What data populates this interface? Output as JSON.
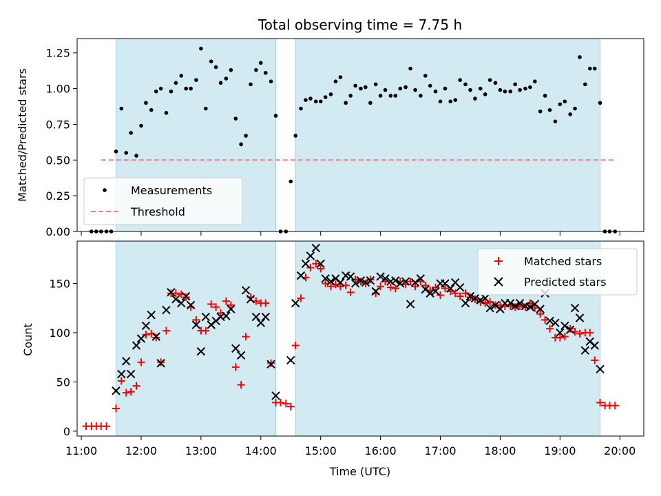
{
  "figure": {
    "title": "Total observing time = 7.75 h",
    "xlabel": "Time (UTC)"
  },
  "chart_data": [
    {
      "type": "scatter",
      "panel": "top",
      "ylabel": "Matched/Predicted stars",
      "xlim": [
        10.93,
        20.4
      ],
      "ylim": [
        0,
        1.35
      ],
      "yticks": [
        0.0,
        0.25,
        0.5,
        0.75,
        1.0,
        1.25
      ],
      "ytick_labels": [
        "0.00",
        "0.25",
        "0.50",
        "0.75",
        "1.00",
        "1.25"
      ],
      "legend": {
        "placement": "lower-left",
        "entries": [
          "Measurements",
          "Threshold"
        ]
      },
      "observing_windows": [
        [
          11.58,
          14.25
        ],
        [
          14.58,
          19.67
        ]
      ],
      "threshold": {
        "name": "Threshold",
        "y": 0.5,
        "x_range": [
          11.33,
          19.92
        ],
        "color": "#f08080"
      },
      "series": [
        {
          "name": "Measurements",
          "color": "#000000",
          "x": [
            11.17,
            11.25,
            11.33,
            11.42,
            11.5,
            11.58,
            11.67,
            11.75,
            11.83,
            11.92,
            12.0,
            12.08,
            12.17,
            12.25,
            12.33,
            12.42,
            12.5,
            12.58,
            12.67,
            12.75,
            12.83,
            12.92,
            13.0,
            13.08,
            13.17,
            13.25,
            13.33,
            13.42,
            13.5,
            13.58,
            13.67,
            13.75,
            13.83,
            13.92,
            14.0,
            14.08,
            14.17,
            14.25,
            14.33,
            14.42,
            14.5,
            14.58,
            14.67,
            14.75,
            14.83,
            14.92,
            15.0,
            15.08,
            15.17,
            15.25,
            15.33,
            15.42,
            15.5,
            15.58,
            15.67,
            15.75,
            15.83,
            15.92,
            16.0,
            16.08,
            16.17,
            16.25,
            16.33,
            16.42,
            16.5,
            16.58,
            16.67,
            16.75,
            16.83,
            16.92,
            17.0,
            17.08,
            17.17,
            17.25,
            17.33,
            17.42,
            17.5,
            17.58,
            17.67,
            17.75,
            17.83,
            17.92,
            18.0,
            18.08,
            18.17,
            18.25,
            18.33,
            18.42,
            18.5,
            18.58,
            18.67,
            18.75,
            18.83,
            18.92,
            19.0,
            19.08,
            19.17,
            19.25,
            19.33,
            19.42,
            19.5,
            19.58,
            19.67,
            19.75,
            19.83,
            19.92
          ],
          "y": [
            0,
            0,
            0,
            0,
            0,
            0.56,
            0.86,
            0.55,
            0.69,
            0.53,
            0.74,
            0.9,
            0.85,
            0.98,
            1.0,
            0.83,
            0.98,
            1.04,
            1.09,
            1.0,
            1.0,
            1.06,
            1.28,
            0.86,
            1.19,
            1.15,
            1.04,
            1.07,
            1.13,
            0.79,
            0.61,
            0.67,
            1.03,
            1.13,
            1.18,
            1.11,
            1.05,
            0.81,
            0,
            0,
            0.35,
            0.67,
            0.86,
            0.92,
            0.93,
            0.91,
            0.91,
            0.94,
            0.96,
            1.05,
            1.08,
            0.9,
            0.95,
            1.02,
            1.0,
            1.01,
            0.9,
            1.03,
            0.95,
            0.99,
            0.95,
            0.95,
            1.0,
            1.01,
            1.14,
            0.99,
            0.95,
            1.09,
            1.02,
            0.98,
            0.91,
            1.0,
            0.91,
            0.92,
            1.06,
            1.03,
            0.99,
            0.93,
            1.0,
            0.96,
            1.06,
            1.04,
            0.99,
            0.98,
            0.98,
            1.03,
            0.99,
            1.0,
            1.01,
            1.05,
            0.84,
            0.95,
            0.85,
            0.77,
            0.89,
            0.91,
            0.82,
            0.86,
            1.22,
            1.03,
            1.14,
            1.14,
            0.9,
            0,
            0,
            0
          ]
        }
      ]
    },
    {
      "type": "scatter",
      "panel": "bottom",
      "ylabel": "Count",
      "xlim": [
        10.93,
        20.4
      ],
      "ylim": [
        -5,
        193
      ],
      "yticks": [
        0,
        50,
        100,
        150
      ],
      "ytick_labels": [
        "0",
        "50",
        "100",
        "150"
      ],
      "xticks": [
        11,
        12,
        13,
        14,
        15,
        16,
        17,
        18,
        19,
        20
      ],
      "xtick_labels": [
        "11:00",
        "12:00",
        "13:00",
        "14:00",
        "15:00",
        "16:00",
        "17:00",
        "18:00",
        "19:00",
        "20:00"
      ],
      "legend": {
        "placement": "upper-right",
        "entries": [
          "Matched stars",
          "Predicted stars"
        ]
      },
      "observing_windows": [
        [
          11.58,
          14.25
        ],
        [
          14.58,
          19.67
        ]
      ],
      "series": [
        {
          "name": "Matched stars",
          "marker": "plus",
          "color": "#ff0000",
          "x": [
            11.08,
            11.17,
            11.25,
            11.33,
            11.42,
            11.58,
            11.67,
            11.75,
            11.83,
            11.92,
            12.0,
            12.08,
            12.17,
            12.25,
            12.33,
            12.42,
            12.5,
            12.58,
            12.67,
            12.75,
            12.83,
            12.92,
            13.0,
            13.08,
            13.17,
            13.25,
            13.33,
            13.42,
            13.5,
            13.58,
            13.67,
            13.75,
            13.83,
            13.92,
            14.0,
            14.08,
            14.17,
            14.25,
            14.33,
            14.42,
            14.5,
            14.58,
            14.67,
            14.75,
            14.83,
            14.92,
            15.0,
            15.08,
            15.17,
            15.25,
            15.33,
            15.42,
            15.5,
            15.58,
            15.67,
            15.75,
            15.83,
            15.92,
            16.0,
            16.08,
            16.17,
            16.25,
            16.33,
            16.42,
            16.5,
            16.58,
            16.67,
            16.75,
            16.83,
            16.92,
            17.0,
            17.08,
            17.17,
            17.25,
            17.33,
            17.42,
            17.5,
            17.58,
            17.67,
            17.75,
            17.83,
            17.92,
            18.0,
            18.08,
            18.17,
            18.25,
            18.33,
            18.42,
            18.5,
            18.58,
            18.67,
            18.75,
            18.83,
            18.92,
            19.0,
            19.08,
            19.17,
            19.25,
            19.33,
            19.42,
            19.5,
            19.58,
            19.67,
            19.75,
            19.83,
            19.92
          ],
          "y": [
            5,
            5,
            5,
            5,
            5,
            23,
            51,
            39,
            40,
            46,
            70,
            98,
            99,
            95,
            70,
            102,
            140,
            140,
            139,
            136,
            126,
            113,
            102,
            102,
            129,
            126,
            120,
            132,
            128,
            65,
            47,
            96,
            136,
            132,
            130,
            130,
            69,
            29,
            29,
            28,
            25,
            87,
            135,
            156,
            166,
            170,
            165,
            150,
            147,
            149,
            147,
            148,
            141,
            154,
            152,
            150,
            154,
            140,
            147,
            152,
            146,
            145,
            152,
            149,
            152,
            147,
            152,
            148,
            143,
            146,
            138,
            145,
            142,
            140,
            137,
            140,
            136,
            134,
            131,
            130,
            131,
            128,
            128,
            127,
            127,
            126,
            127,
            126,
            130,
            125,
            119,
            113,
            104,
            95,
            95,
            96,
            104,
            101,
            99,
            100,
            100,
            72,
            29,
            26,
            26,
            26
          ]
        },
        {
          "name": "Predicted stars",
          "marker": "x",
          "color": "#000000",
          "x": [
            11.58,
            11.67,
            11.75,
            11.83,
            11.92,
            12.0,
            12.08,
            12.17,
            12.25,
            12.33,
            12.42,
            12.5,
            12.58,
            12.67,
            12.75,
            12.83,
            12.92,
            13.0,
            13.08,
            13.17,
            13.25,
            13.33,
            13.42,
            13.5,
            13.58,
            13.67,
            13.75,
            13.83,
            13.92,
            14.0,
            14.08,
            14.17,
            14.25,
            14.5,
            14.58,
            14.67,
            14.75,
            14.83,
            14.92,
            15.0,
            15.08,
            15.17,
            15.25,
            15.33,
            15.42,
            15.5,
            15.58,
            15.67,
            15.75,
            15.83,
            15.92,
            16.0,
            16.08,
            16.17,
            16.25,
            16.33,
            16.42,
            16.5,
            16.58,
            16.67,
            16.75,
            16.83,
            16.92,
            17.0,
            17.08,
            17.17,
            17.25,
            17.33,
            17.42,
            17.5,
            17.58,
            17.67,
            17.75,
            17.83,
            17.92,
            18.0,
            18.08,
            18.17,
            18.25,
            18.33,
            18.42,
            18.5,
            18.58,
            18.67,
            18.75,
            18.83,
            18.92,
            19.0,
            19.08,
            19.17,
            19.25,
            19.33,
            19.42,
            19.5,
            19.58,
            19.67
          ],
          "y": [
            41,
            58,
            71,
            58,
            87,
            94,
            107,
            118,
            96,
            69,
            123,
            141,
            134,
            130,
            137,
            128,
            108,
            81,
            116,
            108,
            112,
            116,
            117,
            124,
            84,
            77,
            143,
            134,
            116,
            110,
            116,
            68,
            36,
            72,
            130,
            158,
            170,
            178,
            186,
            170,
            155,
            152,
            155,
            151,
            158,
            157,
            150,
            153,
            151,
            153,
            142,
            157,
            155,
            152,
            153,
            150,
            152,
            129,
            151,
            155,
            144,
            140,
            142,
            150,
            150,
            145,
            151,
            146,
            130,
            137,
            135,
            133,
            135,
            125,
            128,
            124,
            130,
            130,
            127,
            130,
            127,
            126,
            129,
            124,
            140,
            112,
            110,
            100,
            107,
            103,
            125,
            115,
            82,
            91,
            87,
            63
          ]
        }
      ]
    }
  ]
}
